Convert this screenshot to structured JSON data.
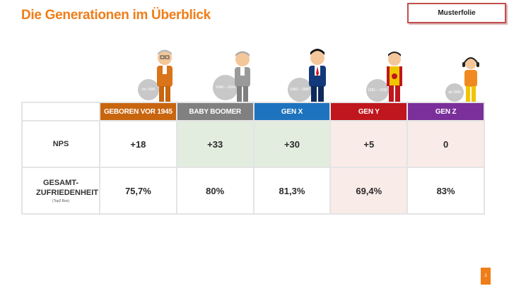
{
  "title": "Die Generationen im Überblick",
  "stamp": "Musterfolie",
  "page_number": "3",
  "colors": {
    "accent": "#f07d18",
    "gen_1945": "#c8650f",
    "baby_boomer": "#808080",
    "gen_x": "#1e73be",
    "gen_y": "#c0161e",
    "gen_z": "#7a2f9a"
  },
  "figures": [
    {
      "badge": "vor 1945"
    },
    {
      "badge": "1946 – 1964"
    },
    {
      "badge": "1965 – 1980"
    },
    {
      "badge": "1981 – 1995"
    },
    {
      "badge": "ab 1996"
    }
  ],
  "table": {
    "headers": [
      "GEBOREN VOR 1945",
      "BABY BOOMER",
      "GEN X",
      "GEN Y",
      "GEN Z"
    ],
    "rows": [
      {
        "label": "NPS",
        "sublabel": "",
        "values": [
          "+18",
          "+33",
          "+30",
          "+5",
          "0"
        ]
      },
      {
        "label": "GESAMT-ZUFRIEDENHEIT",
        "sublabel": "(Top2 Box)",
        "values": [
          "75,7%",
          "80%",
          "81,3%",
          "69,4%",
          "83%"
        ]
      }
    ]
  }
}
